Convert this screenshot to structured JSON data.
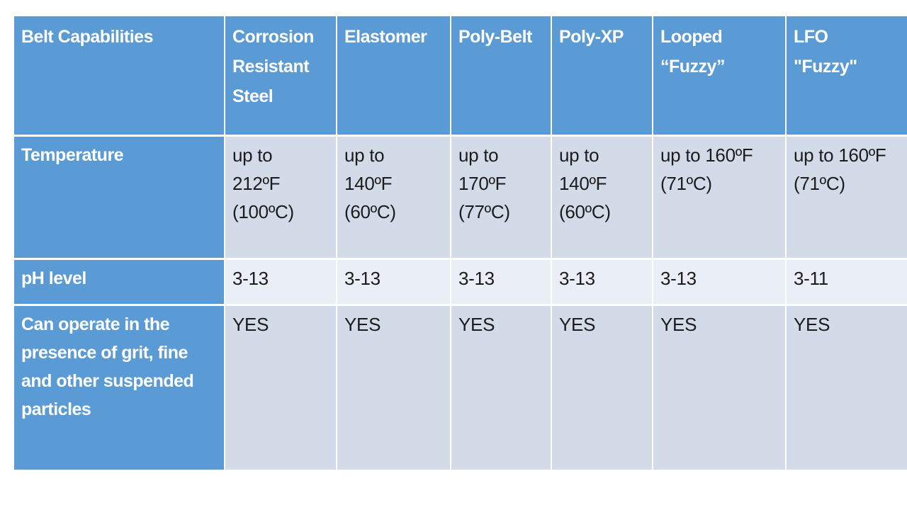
{
  "theme": {
    "header_blue": "#5b9bd5",
    "band_dark": "#d3dbe9",
    "band_light": "#eaeef6",
    "grid_line": "#ffffff",
    "header_text": "#ffffff",
    "body_text": "#1c1c1c",
    "canvas_bg": "#ffffff"
  },
  "table": {
    "corner": "Belt Capabilities",
    "columns": [
      "Corrosion\nResistant\nSteel",
      "Elastomer",
      "Poly-Belt",
      "Poly-XP",
      "Looped\n“Fuzzy”",
      "LFO\n\"Fuzzy\""
    ],
    "rows": [
      {
        "label": "Temperature",
        "cells": [
          "up to\n212ºF\n(100ºC)",
          "up to\n140ºF\n(60ºC)",
          "up to\n170ºF\n(77ºC)",
          "up to\n140ºF\n(60ºC)",
          "up to 160ºF\n(71ºC)",
          "up to 160ºF\n(71ºC)"
        ]
      },
      {
        "label": "pH level",
        "cells": [
          "3-13",
          "3-13",
          "3-13",
          "3-13",
          "3-13",
          "3-11"
        ]
      },
      {
        "label": "Can operate in the\npresence of grit, fine\nand other suspended\nparticles",
        "cells": [
          "YES",
          "YES",
          "YES",
          "YES",
          "YES",
          "YES"
        ]
      }
    ]
  }
}
